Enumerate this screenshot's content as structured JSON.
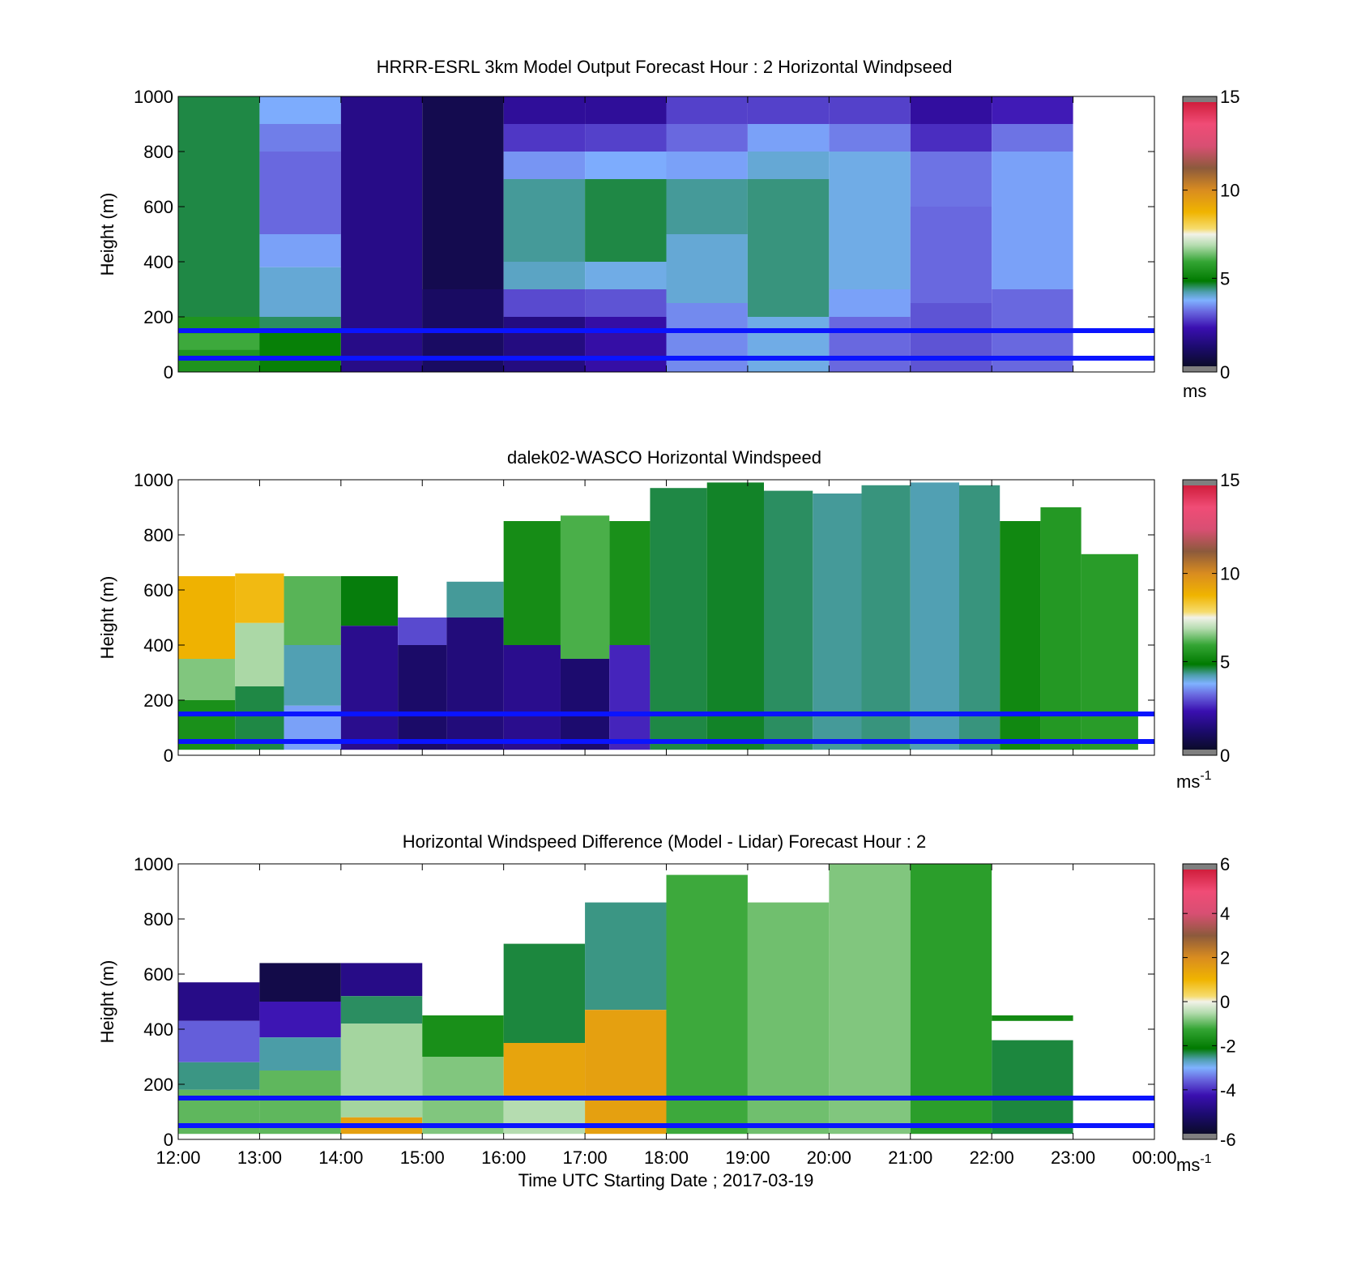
{
  "chart_data": [
    {
      "type": "heatmap",
      "title": "HRRR-ESRL 3km Model Output   Forecast Hour : 2 Horizontal Windpseed",
      "xlabel": "",
      "ylabel": "Height (m)",
      "xlim": [
        12,
        24
      ],
      "ylim": [
        0,
        1000
      ],
      "yticks": [
        0,
        200,
        400,
        600,
        800,
        1000
      ],
      "colorbar": {
        "min": 0,
        "max": 15,
        "ticks": [
          0,
          5,
          10,
          15
        ],
        "unit": "ms",
        "unit_sup": ""
      },
      "reference_lines_m": [
        150,
        50
      ],
      "cells": [
        {
          "x0": 12,
          "x1": 13,
          "y0": 0,
          "y1": 1000,
          "v": 4.6
        },
        {
          "x0": 12,
          "x1": 13,
          "y0": 0,
          "y1": 200,
          "v": 5.5
        },
        {
          "x0": 12,
          "x1": 13,
          "y0": 80,
          "y1": 140,
          "v": 6.0
        },
        {
          "x0": 13,
          "x1": 14,
          "y0": 900,
          "y1": 1000,
          "v": 3.7
        },
        {
          "x0": 13,
          "x1": 14,
          "y0": 800,
          "y1": 900,
          "v": 3.3
        },
        {
          "x0": 13,
          "x1": 14,
          "y0": 500,
          "y1": 800,
          "v": 3.1
        },
        {
          "x0": 13,
          "x1": 14,
          "y0": 380,
          "y1": 500,
          "v": 3.6
        },
        {
          "x0": 13,
          "x1": 14,
          "y0": 200,
          "y1": 380,
          "v": 4.0
        },
        {
          "x0": 13,
          "x1": 14,
          "y0": 150,
          "y1": 200,
          "v": 4.5
        },
        {
          "x0": 13,
          "x1": 14,
          "y0": 0,
          "y1": 150,
          "v": 5.0
        },
        {
          "x0": 14,
          "x1": 15,
          "y0": 0,
          "y1": 1000,
          "v": 1.5
        },
        {
          "x0": 15,
          "x1": 16,
          "y0": 0,
          "y1": 1000,
          "v": 0.6
        },
        {
          "x0": 15,
          "x1": 16,
          "y0": 0,
          "y1": 300,
          "v": 0.9
        },
        {
          "x0": 16,
          "x1": 17,
          "y0": 900,
          "y1": 1000,
          "v": 1.8
        },
        {
          "x0": 16,
          "x1": 17,
          "y0": 800,
          "y1": 900,
          "v": 2.6
        },
        {
          "x0": 16,
          "x1": 17,
          "y0": 700,
          "y1": 800,
          "v": 3.5
        },
        {
          "x0": 16,
          "x1": 17,
          "y0": 400,
          "y1": 700,
          "v": 4.3
        },
        {
          "x0": 16,
          "x1": 17,
          "y0": 300,
          "y1": 400,
          "v": 4.1
        },
        {
          "x0": 16,
          "x1": 17,
          "y0": 200,
          "y1": 300,
          "v": 2.8
        },
        {
          "x0": 16,
          "x1": 17,
          "y0": 0,
          "y1": 200,
          "v": 1.4
        },
        {
          "x0": 17,
          "x1": 18,
          "y0": 900,
          "y1": 1000,
          "v": 1.8
        },
        {
          "x0": 17,
          "x1": 18,
          "y0": 800,
          "y1": 900,
          "v": 2.7
        },
        {
          "x0": 17,
          "x1": 18,
          "y0": 700,
          "y1": 800,
          "v": 3.7
        },
        {
          "x0": 17,
          "x1": 18,
          "y0": 400,
          "y1": 700,
          "v": 4.6
        },
        {
          "x0": 17,
          "x1": 18,
          "y0": 300,
          "y1": 400,
          "v": 3.9
        },
        {
          "x0": 17,
          "x1": 18,
          "y0": 200,
          "y1": 300,
          "v": 2.9
        },
        {
          "x0": 17,
          "x1": 18,
          "y0": 0,
          "y1": 200,
          "v": 2.0
        },
        {
          "x0": 18,
          "x1": 19,
          "y0": 900,
          "y1": 1000,
          "v": 2.7
        },
        {
          "x0": 18,
          "x1": 19,
          "y0": 800,
          "y1": 900,
          "v": 3.1
        },
        {
          "x0": 18,
          "x1": 19,
          "y0": 700,
          "y1": 800,
          "v": 3.6
        },
        {
          "x0": 18,
          "x1": 19,
          "y0": 500,
          "y1": 700,
          "v": 4.3
        },
        {
          "x0": 18,
          "x1": 19,
          "y0": 250,
          "y1": 500,
          "v": 4.0
        },
        {
          "x0": 18,
          "x1": 19,
          "y0": 0,
          "y1": 250,
          "v": 3.4
        },
        {
          "x0": 19,
          "x1": 20,
          "y0": 900,
          "y1": 1000,
          "v": 2.7
        },
        {
          "x0": 19,
          "x1": 20,
          "y0": 800,
          "y1": 900,
          "v": 3.6
        },
        {
          "x0": 19,
          "x1": 20,
          "y0": 700,
          "y1": 800,
          "v": 4.0
        },
        {
          "x0": 19,
          "x1": 20,
          "y0": 200,
          "y1": 700,
          "v": 4.4
        },
        {
          "x0": 19,
          "x1": 20,
          "y0": 0,
          "y1": 200,
          "v": 3.9
        },
        {
          "x0": 20,
          "x1": 21,
          "y0": 900,
          "y1": 1000,
          "v": 2.7
        },
        {
          "x0": 20,
          "x1": 21,
          "y0": 800,
          "y1": 900,
          "v": 3.3
        },
        {
          "x0": 20,
          "x1": 21,
          "y0": 300,
          "y1": 800,
          "v": 3.9
        },
        {
          "x0": 20,
          "x1": 21,
          "y0": 200,
          "y1": 300,
          "v": 3.6
        },
        {
          "x0": 20,
          "x1": 21,
          "y0": 0,
          "y1": 200,
          "v": 3.1
        },
        {
          "x0": 21,
          "x1": 22,
          "y0": 900,
          "y1": 1000,
          "v": 1.9
        },
        {
          "x0": 21,
          "x1": 22,
          "y0": 800,
          "y1": 900,
          "v": 2.5
        },
        {
          "x0": 21,
          "x1": 22,
          "y0": 600,
          "y1": 800,
          "v": 3.2
        },
        {
          "x0": 21,
          "x1": 22,
          "y0": 250,
          "y1": 600,
          "v": 3.1
        },
        {
          "x0": 21,
          "x1": 22,
          "y0": 0,
          "y1": 250,
          "v": 2.9
        },
        {
          "x0": 22,
          "x1": 23,
          "y0": 900,
          "y1": 1000,
          "v": 2.3
        },
        {
          "x0": 22,
          "x1": 23,
          "y0": 800,
          "y1": 900,
          "v": 3.2
        },
        {
          "x0": 22,
          "x1": 23,
          "y0": 300,
          "y1": 800,
          "v": 3.6
        },
        {
          "x0": 22,
          "x1": 23,
          "y0": 0,
          "y1": 300,
          "v": 3.1
        }
      ]
    },
    {
      "type": "heatmap",
      "title": "dalek02-WASCO  Horizontal Windspeed",
      "xlabel": "",
      "ylabel": "Height (m)",
      "xlim": [
        12,
        24
      ],
      "ylim": [
        0,
        1000
      ],
      "yticks": [
        0,
        200,
        400,
        600,
        800,
        1000
      ],
      "colorbar": {
        "min": 0,
        "max": 15,
        "ticks": [
          0,
          5,
          10,
          15
        ],
        "unit": "ms",
        "unit_sup": "-1"
      },
      "reference_lines_m": [
        150,
        50
      ],
      "cells": [
        {
          "x0": 12.0,
          "x1": 12.7,
          "y0": 350,
          "y1": 650,
          "v": 8.8
        },
        {
          "x0": 12.0,
          "x1": 12.7,
          "y0": 200,
          "y1": 350,
          "v": 6.5
        },
        {
          "x0": 12.0,
          "x1": 12.7,
          "y0": 20,
          "y1": 200,
          "v": 5.4
        },
        {
          "x0": 12.7,
          "x1": 13.3,
          "y0": 480,
          "y1": 660,
          "v": 8.6
        },
        {
          "x0": 12.7,
          "x1": 13.3,
          "y0": 250,
          "y1": 480,
          "v": 6.8
        },
        {
          "x0": 12.7,
          "x1": 13.3,
          "y0": 20,
          "y1": 250,
          "v": 4.6
        },
        {
          "x0": 13.3,
          "x1": 14.0,
          "y0": 400,
          "y1": 650,
          "v": 6.2
        },
        {
          "x0": 13.3,
          "x1": 14.0,
          "y0": 180,
          "y1": 400,
          "v": 4.2
        },
        {
          "x0": 13.3,
          "x1": 14.0,
          "y0": 20,
          "y1": 180,
          "v": 3.6
        },
        {
          "x0": 14.0,
          "x1": 14.7,
          "y0": 470,
          "y1": 650,
          "v": 4.8
        },
        {
          "x0": 14.0,
          "x1": 14.7,
          "y0": 20,
          "y1": 470,
          "v": 1.6
        },
        {
          "x0": 14.7,
          "x1": 15.3,
          "y0": 400,
          "y1": 500,
          "v": 2.8
        },
        {
          "x0": 14.7,
          "x1": 15.3,
          "y0": 20,
          "y1": 400,
          "v": 1.0
        },
        {
          "x0": 15.3,
          "x1": 16.0,
          "y0": 500,
          "y1": 630,
          "v": 4.3
        },
        {
          "x0": 15.3,
          "x1": 16.0,
          "y0": 20,
          "y1": 500,
          "v": 1.3
        },
        {
          "x0": 16.0,
          "x1": 16.7,
          "y0": 400,
          "y1": 850,
          "v": 5.3
        },
        {
          "x0": 16.0,
          "x1": 16.7,
          "y0": 20,
          "y1": 400,
          "v": 1.6
        },
        {
          "x0": 16.7,
          "x1": 17.3,
          "y0": 350,
          "y1": 870,
          "v": 6.1
        },
        {
          "x0": 16.7,
          "x1": 17.3,
          "y0": 20,
          "y1": 350,
          "v": 1.1
        },
        {
          "x0": 17.3,
          "x1": 17.8,
          "y0": 400,
          "y1": 850,
          "v": 5.4
        },
        {
          "x0": 17.3,
          "x1": 17.8,
          "y0": 20,
          "y1": 400,
          "v": 2.4
        },
        {
          "x0": 17.8,
          "x1": 18.5,
          "y0": 20,
          "y1": 970,
          "v": 4.6
        },
        {
          "x0": 18.5,
          "x1": 19.2,
          "y0": 20,
          "y1": 990,
          "v": 4.7
        },
        {
          "x0": 19.2,
          "x1": 19.8,
          "y0": 20,
          "y1": 960,
          "v": 4.5
        },
        {
          "x0": 19.8,
          "x1": 20.4,
          "y0": 20,
          "y1": 950,
          "v": 4.3
        },
        {
          "x0": 20.4,
          "x1": 21.0,
          "y0": 20,
          "y1": 980,
          "v": 4.4
        },
        {
          "x0": 21.0,
          "x1": 21.6,
          "y0": 20,
          "y1": 990,
          "v": 4.2
        },
        {
          "x0": 21.6,
          "x1": 22.1,
          "y0": 20,
          "y1": 980,
          "v": 4.4
        },
        {
          "x0": 22.1,
          "x1": 22.6,
          "y0": 20,
          "y1": 850,
          "v": 5.2
        },
        {
          "x0": 22.6,
          "x1": 23.1,
          "y0": 20,
          "y1": 900,
          "v": 5.6
        },
        {
          "x0": 23.1,
          "x1": 23.8,
          "y0": 20,
          "y1": 730,
          "v": 5.7
        }
      ]
    },
    {
      "type": "heatmap",
      "title": "Horizontal Windspeed Difference (Model - Lidar) Forecast Hour : 2",
      "xlabel": "Time UTC  Starting Date ; 2017-03-19",
      "ylabel": "Height (m)",
      "xlim": [
        12,
        24
      ],
      "ylim": [
        0,
        1000
      ],
      "yticks": [
        0,
        200,
        400,
        600,
        800,
        1000
      ],
      "xticks": [
        12,
        13,
        14,
        15,
        16,
        17,
        18,
        19,
        20,
        21,
        22,
        23,
        24
      ],
      "xticklabels": [
        "12:00",
        "13:00",
        "14:00",
        "15:00",
        "16:00",
        "17:00",
        "18:00",
        "19:00",
        "20:00",
        "21:00",
        "22:00",
        "23:00",
        "00:00"
      ],
      "colorbar": {
        "min": -6,
        "max": 6,
        "ticks": [
          -6,
          -4,
          -2,
          0,
          2,
          4,
          6
        ],
        "unit": "ms",
        "unit_sup": "-1"
      },
      "reference_lines_m": [
        150,
        50
      ],
      "cells": [
        {
          "x0": 12,
          "x1": 13,
          "y0": 430,
          "y1": 570,
          "v": -4.8
        },
        {
          "x0": 12,
          "x1": 13,
          "y0": 280,
          "y1": 430,
          "v": -3.6
        },
        {
          "x0": 12,
          "x1": 13,
          "y0": 180,
          "y1": 280,
          "v": -2.5
        },
        {
          "x0": 12,
          "x1": 13,
          "y0": 20,
          "y1": 180,
          "v": -1.0
        },
        {
          "x0": 13,
          "x1": 14,
          "y0": 500,
          "y1": 640,
          "v": -5.6
        },
        {
          "x0": 13,
          "x1": 14,
          "y0": 370,
          "y1": 500,
          "v": -4.2
        },
        {
          "x0": 13,
          "x1": 14,
          "y0": 250,
          "y1": 370,
          "v": -2.6
        },
        {
          "x0": 13,
          "x1": 14,
          "y0": 20,
          "y1": 250,
          "v": -1.0
        },
        {
          "x0": 14,
          "x1": 15,
          "y0": 520,
          "y1": 640,
          "v": -4.8
        },
        {
          "x0": 14,
          "x1": 15,
          "y0": 420,
          "y1": 520,
          "v": -2.4
        },
        {
          "x0": 14,
          "x1": 15,
          "y0": 80,
          "y1": 420,
          "v": -0.6
        },
        {
          "x0": 14,
          "x1": 15,
          "y0": 20,
          "y1": 80,
          "v": 1.5
        },
        {
          "x0": 15,
          "x1": 16,
          "y0": 300,
          "y1": 450,
          "v": -1.7
        },
        {
          "x0": 15,
          "x1": 16,
          "y0": 20,
          "y1": 300,
          "v": -0.8
        },
        {
          "x0": 16,
          "x1": 17,
          "y0": 350,
          "y1": 710,
          "v": -2.3
        },
        {
          "x0": 16,
          "x1": 17,
          "y0": 150,
          "y1": 350,
          "v": 1.4
        },
        {
          "x0": 16,
          "x1": 17,
          "y0": 20,
          "y1": 150,
          "v": -0.5
        },
        {
          "x0": 17,
          "x1": 18,
          "y0": 470,
          "y1": 860,
          "v": -2.5
        },
        {
          "x0": 17,
          "x1": 18,
          "y0": 20,
          "y1": 470,
          "v": 1.5
        },
        {
          "x0": 18,
          "x1": 19,
          "y0": 20,
          "y1": 960,
          "v": -1.2
        },
        {
          "x0": 19,
          "x1": 20,
          "y0": 20,
          "y1": 860,
          "v": -0.9
        },
        {
          "x0": 20,
          "x1": 21,
          "y0": 20,
          "y1": 1000,
          "v": -0.8
        },
        {
          "x0": 21,
          "x1": 22,
          "y0": 20,
          "y1": 1000,
          "v": -1.4
        },
        {
          "x0": 22,
          "x1": 23,
          "y0": 430,
          "y1": 450,
          "v": -1.8
        },
        {
          "x0": 22,
          "x1": 23,
          "y0": 20,
          "y1": 360,
          "v": -2.3
        }
      ]
    }
  ]
}
